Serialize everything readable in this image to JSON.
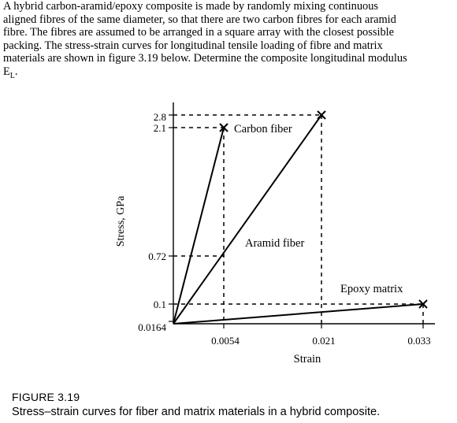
{
  "problem": {
    "lines": [
      "A hybrid carbon-aramid/epoxy composite is made by randomly mixing continuous",
      "aligned fibres of the same diameter, so that there are two carbon fibres for each aramid",
      "fibre. The fibres are assumed to be arranged in a square array with the closest possible",
      "packing. The stress-strain curves for longitudinal tensile loading of fibre and matrix",
      "materials are shown in figure 3.19 below. Determine the composite longitudinal modulus",
      "E"
    ],
    "subscript": "L",
    "end_punct": "."
  },
  "figure": {
    "ylabel": "Stress, GPa",
    "xlabel": "Strain",
    "y_ticks": [
      "2.8",
      "2.1",
      "0.72",
      "0.1",
      "0.0164"
    ],
    "x_ticks": [
      "0.0054",
      "0.021",
      "0.033"
    ],
    "curve_labels": {
      "carbon": "Carbon fiber",
      "aramid": "Aramid fiber",
      "epoxy": "Epoxy matrix"
    },
    "caption_label": "FIGURE 3.19",
    "caption_text": "Stress–strain curves for fiber and matrix materials in a hybrid composite."
  },
  "chart_data": {
    "type": "line",
    "xlabel": "Strain",
    "ylabel": "Stress, GPa",
    "series": [
      {
        "name": "Carbon fiber",
        "x": [
          0,
          0.0054
        ],
        "y": [
          0,
          2.1
        ]
      },
      {
        "name": "Aramid fiber",
        "x": [
          0,
          0.021
        ],
        "y": [
          0,
          2.8
        ]
      },
      {
        "name": "Epoxy matrix",
        "x": [
          0,
          0.033
        ],
        "y": [
          0,
          0.1
        ]
      }
    ],
    "y_tick_values": [
      2.8,
      2.1,
      0.72,
      0.1,
      0.0164
    ],
    "x_tick_values": [
      0.0054,
      0.021,
      0.033
    ]
  }
}
